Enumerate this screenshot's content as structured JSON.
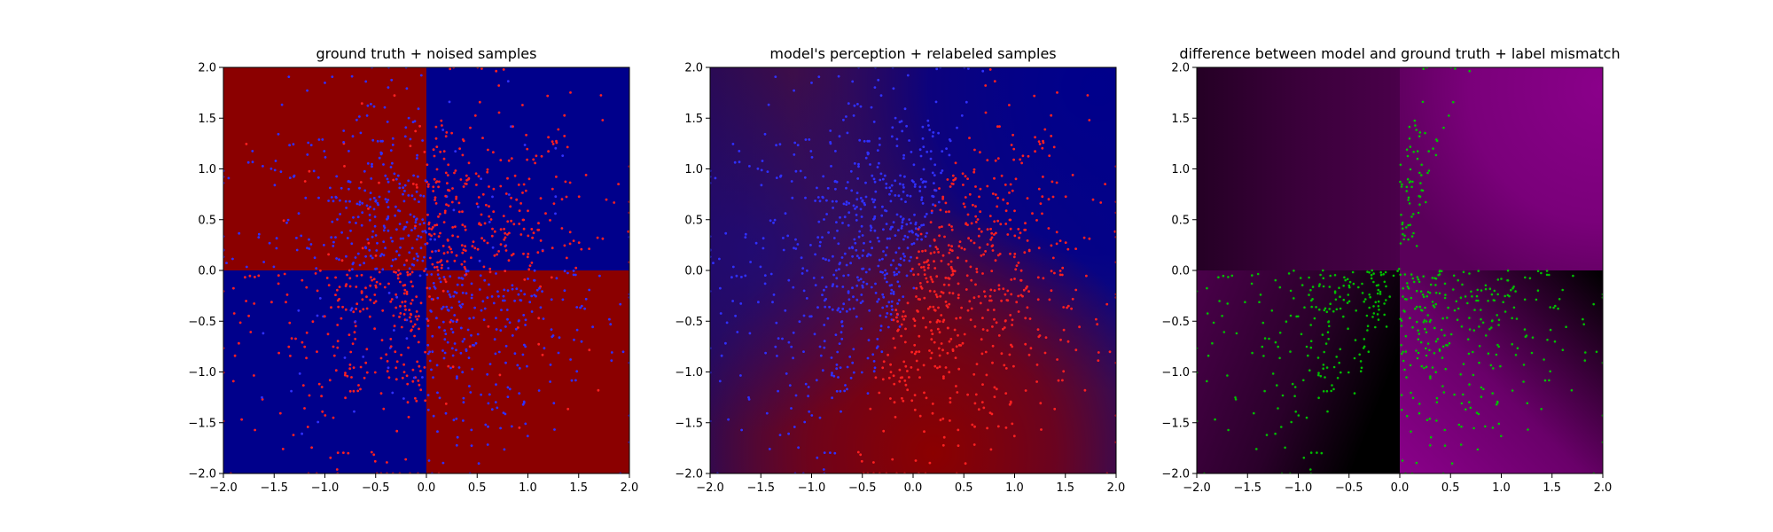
{
  "figure": {
    "background": "#ffffff"
  },
  "chart_data": [
    {
      "type": "scatter",
      "title": "ground truth + noised samples",
      "xlim": [
        -2.0,
        2.0
      ],
      "ylim": [
        -2.0,
        2.0
      ],
      "xticks": [
        "−2.0",
        "−1.5",
        "−1.0",
        "−0.5",
        "0.0",
        "0.5",
        "1.0",
        "1.5",
        "2.0"
      ],
      "yticks": [
        "−2.0",
        "−1.5",
        "−1.0",
        "−0.5",
        "0.0",
        "0.5",
        "1.0",
        "1.5",
        "2.0"
      ],
      "background": "checkerboard: x*y<0 red (#8b0000), x*y>0 blue (#00008b)",
      "series": [
        {
          "color": "#ff2020",
          "description": "samples labelled class where x*y>0",
          "approx_count": 600
        },
        {
          "color": "#3030ff",
          "description": "samples labelled class where x*y<0",
          "approx_count": 600
        }
      ],
      "grid": false
    },
    {
      "type": "scatter",
      "title": "model's perception + relabeled samples",
      "xlim": [
        -2.0,
        2.0
      ],
      "ylim": [
        -2.0,
        2.0
      ],
      "xticks": [
        "−2.0",
        "−1.5",
        "−1.0",
        "−0.5",
        "0.0",
        "0.5",
        "1.0",
        "1.5",
        "2.0"
      ],
      "yticks": [
        "−2.0",
        "−1.5",
        "−1.0",
        "−0.5",
        "0.0",
        "0.5",
        "1.0",
        "1.5",
        "2.0"
      ],
      "background": "smooth gradient: blue in upper-right and left, red in lower-center",
      "series": [
        {
          "color": "#ff2020",
          "description": "samples relabeled red (mostly x>0 diagonal band)",
          "approx_count": 600
        },
        {
          "color": "#3030ff",
          "description": "samples relabeled blue (mostly x<0)",
          "approx_count": 600
        }
      ],
      "grid": false
    },
    {
      "type": "scatter",
      "title": "difference between model and ground truth + label mismatch",
      "xlim": [
        -2.0,
        2.0
      ],
      "ylim": [
        -2.0,
        2.0
      ],
      "xticks": [
        "−2.0",
        "−1.5",
        "−1.0",
        "−0.5",
        "0.0",
        "0.5",
        "1.0",
        "1.5",
        "2.0"
      ],
      "yticks": [
        "−2.0",
        "−1.5",
        "−1.0",
        "−0.5",
        "0.0",
        "0.5",
        "1.0",
        "1.5",
        "2.0"
      ],
      "background": "magenta/black difference map",
      "series": [
        {
          "color": "#00c000",
          "description": "label mismatch samples",
          "approx_count": 450
        }
      ],
      "grid": false
    }
  ]
}
